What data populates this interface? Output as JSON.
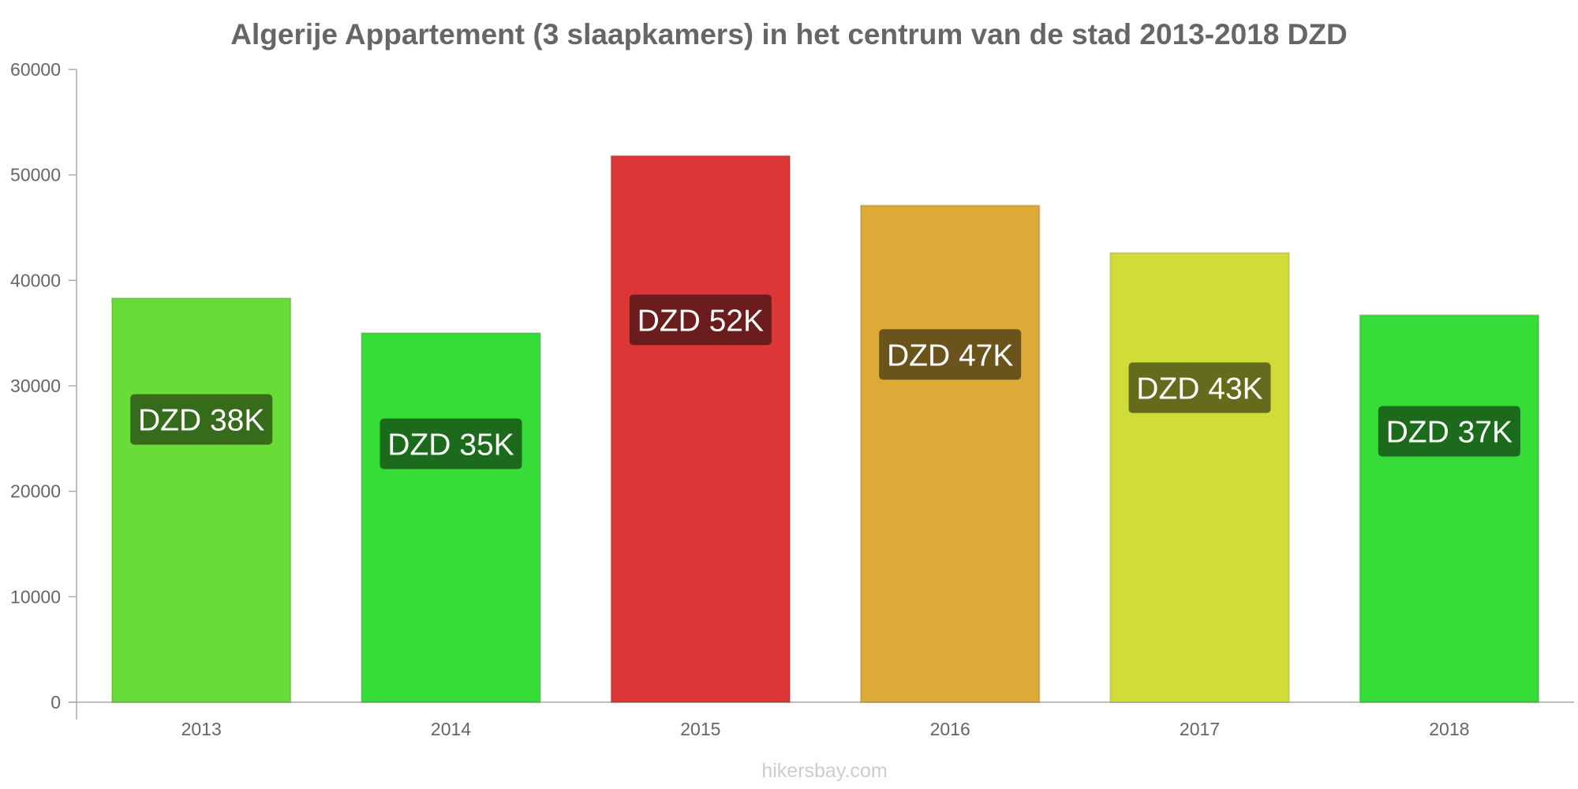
{
  "chart_data": {
    "type": "bar",
    "title": "Algerije Appartement (3 slaapkamers) in het centrum van de stad 2013-2018 DZD",
    "xlabel": "",
    "ylabel": "",
    "categories": [
      "2013",
      "2014",
      "2015",
      "2016",
      "2017",
      "2018"
    ],
    "values": [
      38300,
      35000,
      51800,
      47100,
      42600,
      36700
    ],
    "data_labels": [
      "DZD 38K",
      "DZD 35K",
      "DZD 52K",
      "DZD 47K",
      "DZD 43K",
      "DZD 37K"
    ],
    "bar_colors": [
      "#6adc37",
      "#36dc37",
      "#dc3637",
      "#dcaa37",
      "#d0dc37",
      "#36dc37"
    ],
    "label_bg_colors": [
      "#366b1c",
      "#1c6b1c",
      "#6b1c1c",
      "#6b541c",
      "#656b1c",
      "#1c6b1c"
    ],
    "ylim": [
      0,
      60000
    ],
    "yticks": [
      "0",
      "10000",
      "20000",
      "30000",
      "40000",
      "50000",
      "60000"
    ],
    "grid": false,
    "legend": "none"
  },
  "watermark": "hikersbay.com"
}
